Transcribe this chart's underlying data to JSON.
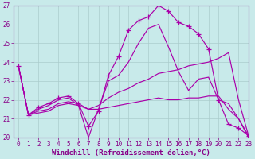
{
  "background_color": "#c8eaea",
  "grid_color": "#aacccc",
  "line_color": "#aa00aa",
  "xlim": [
    -0.5,
    23
  ],
  "ylim": [
    20,
    27
  ],
  "yticks": [
    20,
    21,
    22,
    23,
    24,
    25,
    26,
    27
  ],
  "xticks": [
    0,
    1,
    2,
    3,
    4,
    5,
    6,
    7,
    8,
    9,
    10,
    11,
    12,
    13,
    14,
    15,
    16,
    17,
    18,
    19,
    20,
    21,
    22,
    23
  ],
  "xlabel": "Windchill (Refroidissement éolien,°C)",
  "lines": [
    {
      "x": [
        0,
        1,
        2,
        3,
        4,
        5,
        6,
        7,
        8,
        9,
        10,
        11,
        12,
        13,
        14,
        15,
        16,
        17,
        18,
        19,
        20,
        21,
        22,
        23
      ],
      "y": [
        23.8,
        21.2,
        21.6,
        21.8,
        22.1,
        22.2,
        21.8,
        20.6,
        21.4,
        23.3,
        24.3,
        25.7,
        26.2,
        26.4,
        27.0,
        26.7,
        26.1,
        25.9,
        25.5,
        24.7,
        22.0,
        20.7,
        20.5,
        20.1
      ],
      "marker": "+",
      "markersize": 4
    },
    {
      "x": [
        0,
        1,
        2,
        3,
        4,
        5,
        6,
        7,
        8,
        9,
        10,
        11,
        12,
        13,
        14,
        15,
        16,
        17,
        18,
        19,
        20,
        21,
        22,
        23
      ],
      "y": [
        23.8,
        21.2,
        21.5,
        21.7,
        22.0,
        22.1,
        21.7,
        20.0,
        21.5,
        23.0,
        23.3,
        24.0,
        25.0,
        25.8,
        26.0,
        24.8,
        23.5,
        22.5,
        23.1,
        23.2,
        22.0,
        21.8,
        21.0,
        20.0
      ],
      "marker": null,
      "markersize": 0
    },
    {
      "x": [
        0,
        1,
        2,
        3,
        4,
        5,
        6,
        7,
        8,
        9,
        10,
        11,
        12,
        13,
        14,
        15,
        16,
        17,
        18,
        19,
        20,
        21,
        22,
        23
      ],
      "y": [
        23.8,
        21.2,
        21.4,
        21.5,
        21.8,
        21.9,
        21.8,
        21.5,
        21.7,
        22.1,
        22.4,
        22.6,
        22.9,
        23.1,
        23.4,
        23.5,
        23.6,
        23.8,
        23.9,
        24.0,
        24.2,
        24.5,
        22.0,
        20.1
      ],
      "marker": null,
      "markersize": 0
    },
    {
      "x": [
        0,
        1,
        2,
        3,
        4,
        5,
        6,
        7,
        8,
        9,
        10,
        11,
        12,
        13,
        14,
        15,
        16,
        17,
        18,
        19,
        20,
        21,
        22,
        23
      ],
      "y": [
        23.8,
        21.2,
        21.3,
        21.4,
        21.7,
        21.8,
        21.7,
        21.5,
        21.5,
        21.6,
        21.7,
        21.8,
        21.9,
        22.0,
        22.1,
        22.0,
        22.0,
        22.1,
        22.1,
        22.2,
        22.2,
        21.5,
        21.0,
        20.1
      ],
      "marker": null,
      "markersize": 0
    }
  ],
  "tick_fontsize": 5.5,
  "label_fontsize": 6.5,
  "tick_color": "#880088",
  "label_color": "#880088",
  "spine_color": "#880088"
}
